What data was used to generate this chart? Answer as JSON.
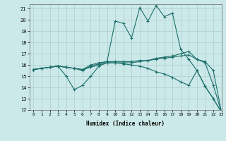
{
  "title": "",
  "xlabel": "Humidex (Indice chaleur)",
  "xlim": [
    -0.5,
    23
  ],
  "ylim": [
    12,
    21.4
  ],
  "yticks": [
    12,
    13,
    14,
    15,
    16,
    17,
    18,
    19,
    20,
    21
  ],
  "xticks": [
    0,
    1,
    2,
    3,
    4,
    5,
    6,
    7,
    8,
    9,
    10,
    11,
    12,
    13,
    14,
    15,
    16,
    17,
    18,
    19,
    20,
    21,
    22,
    23
  ],
  "bg_color": "#cce9e9",
  "grid_color": "#b0cccc",
  "line_color": "#1a6e6a",
  "lines": [
    {
      "x": [
        0,
        1,
        2,
        3,
        4,
        5,
        6,
        7,
        8,
        9,
        10,
        11,
        12,
        13,
        14,
        15,
        16,
        17,
        18,
        19,
        20,
        21,
        22,
        23
      ],
      "y": [
        15.6,
        15.7,
        15.8,
        15.9,
        15.8,
        15.7,
        15.6,
        16.0,
        16.2,
        16.3,
        19.9,
        19.7,
        18.4,
        21.1,
        19.9,
        21.3,
        20.3,
        20.6,
        17.4,
        16.5,
        15.5,
        14.1,
        13.0,
        11.8
      ]
    },
    {
      "x": [
        0,
        1,
        2,
        3,
        4,
        5,
        6,
        7,
        8,
        9,
        10,
        11,
        12,
        13,
        14,
        15,
        16,
        17,
        18,
        19,
        20,
        21,
        22,
        23
      ],
      "y": [
        15.6,
        15.7,
        15.8,
        15.9,
        15.8,
        15.7,
        15.5,
        15.9,
        16.1,
        16.3,
        16.3,
        16.3,
        16.3,
        16.4,
        16.4,
        16.6,
        16.7,
        16.8,
        17.0,
        17.2,
        16.5,
        16.2,
        14.2,
        11.8
      ]
    },
    {
      "x": [
        0,
        1,
        2,
        3,
        4,
        5,
        6,
        7,
        8,
        9,
        10,
        11,
        12,
        13,
        14,
        15,
        16,
        17,
        18,
        19,
        20,
        21,
        22,
        23
      ],
      "y": [
        15.6,
        15.7,
        15.8,
        15.9,
        15.8,
        15.7,
        15.6,
        15.8,
        16.0,
        16.2,
        16.2,
        16.2,
        16.2,
        16.3,
        16.4,
        16.5,
        16.6,
        16.7,
        16.8,
        16.9,
        16.5,
        16.3,
        15.5,
        11.8
      ]
    },
    {
      "x": [
        0,
        1,
        2,
        3,
        4,
        5,
        6,
        7,
        8,
        9,
        10,
        11,
        12,
        13,
        14,
        15,
        16,
        17,
        18,
        19,
        20,
        21,
        22,
        23
      ],
      "y": [
        15.6,
        15.7,
        15.8,
        15.9,
        15.0,
        13.8,
        14.2,
        15.0,
        15.9,
        16.2,
        16.2,
        16.1,
        16.0,
        15.9,
        15.7,
        15.4,
        15.2,
        14.9,
        14.5,
        14.2,
        15.5,
        14.1,
        13.0,
        11.8
      ]
    }
  ]
}
